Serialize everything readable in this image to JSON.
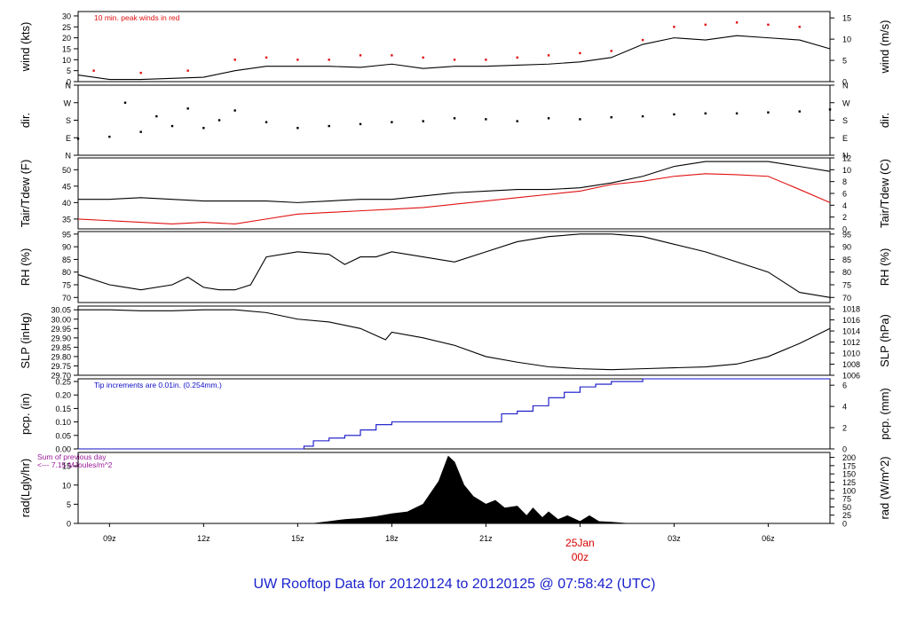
{
  "footer": {
    "title": "UW Rooftop Data for 20120124  to  20120125 @ 07:58:42  (UTC)"
  },
  "x_axis": {
    "start_hour": 8.0,
    "end_hour": 31.97,
    "ticks": [
      {
        "hour": 9,
        "label": "09z"
      },
      {
        "hour": 12,
        "label": "12z"
      },
      {
        "hour": 15,
        "label": "15z"
      },
      {
        "hour": 18,
        "label": "18z"
      },
      {
        "hour": 21,
        "label": "21z"
      },
      {
        "hour": 24,
        "label": "00z"
      },
      {
        "hour": 27,
        "label": "03z"
      },
      {
        "hour": 30,
        "label": "06z"
      }
    ],
    "date_marker": {
      "hour": 24,
      "label": "25Jan",
      "color": "#d40000"
    }
  },
  "colors": {
    "black": "#000000",
    "red": "#e01010",
    "blue": "#1010c8",
    "purple": "#9a1a9a"
  },
  "chart_data": [
    {
      "id": "wind",
      "type": "line",
      "ylabel_left": "wind (kts)",
      "ylabel_right": "wind (m/s)",
      "ylim": [
        0,
        32
      ],
      "ylim_right": [
        0,
        16.5
      ],
      "yticks_left": [
        0,
        5,
        10,
        15,
        20,
        25,
        30
      ],
      "yticks_right": [
        0,
        5,
        10,
        15
      ],
      "annotation": "10 min. peak winds in red",
      "series": [
        {
          "color": "black",
          "x": [
            8,
            9,
            10,
            11,
            12,
            13,
            14,
            15,
            16,
            17,
            18,
            19,
            20,
            21,
            22,
            23,
            24,
            25,
            26,
            27,
            28,
            29,
            30,
            31,
            31.97
          ],
          "y": [
            3,
            1,
            1,
            1.5,
            2,
            5,
            7,
            7,
            7,
            6.5,
            8,
            6,
            7,
            7,
            7.5,
            8,
            9,
            11,
            17,
            20,
            19,
            21,
            20,
            19,
            15
          ]
        },
        {
          "color": "red",
          "style": "points",
          "x": [
            8.5,
            10,
            11.5,
            13,
            14,
            15,
            16,
            17,
            18,
            19,
            20,
            21,
            22,
            23,
            24,
            25,
            26,
            27,
            28,
            29,
            30,
            31
          ],
          "y": [
            5,
            4,
            5,
            10,
            11,
            10,
            10,
            12,
            12,
            11,
            10,
            10,
            11,
            12,
            13,
            14,
            19,
            25,
            26,
            27,
            26,
            25
          ]
        }
      ]
    },
    {
      "id": "dir",
      "type": "scatter",
      "ylabel_left": "dir.",
      "ylabel_right": "dir.",
      "ylim": [
        0,
        360
      ],
      "yticks_left": [
        {
          "v": 0,
          "label": "N"
        },
        {
          "v": 90,
          "label": "E"
        },
        {
          "v": 180,
          "label": "S"
        },
        {
          "v": 270,
          "label": "W"
        },
        {
          "v": 360,
          "label": "N"
        }
      ],
      "series": [
        {
          "color": "black",
          "x": [
            8,
            9,
            9.5,
            10,
            10.5,
            11,
            11.5,
            12,
            12.5,
            13,
            14,
            15,
            16,
            17,
            18,
            19,
            20,
            21,
            22,
            23,
            24,
            25,
            26,
            27,
            28,
            29,
            30,
            31,
            31.97
          ],
          "y": [
            85,
            95,
            270,
            120,
            200,
            150,
            240,
            140,
            180,
            230,
            170,
            140,
            150,
            160,
            170,
            175,
            190,
            185,
            175,
            190,
            185,
            195,
            200,
            210,
            215,
            215,
            220,
            225,
            235
          ]
        }
      ]
    },
    {
      "id": "temp",
      "type": "line",
      "ylabel_left": "Tair/Tdew (F)",
      "ylabel_right": "Tair/Tdew (C)",
      "ylim": [
        32,
        53.6
      ],
      "ylim_right": [
        0,
        12
      ],
      "yticks_left": [
        35,
        40,
        45,
        50
      ],
      "yticks_right": [
        0,
        2,
        4,
        6,
        8,
        10,
        12
      ],
      "series": [
        {
          "name": "Tair",
          "color": "black",
          "x": [
            8,
            9,
            10,
            11,
            12,
            13,
            14,
            15,
            16,
            17,
            18,
            19,
            20,
            21,
            22,
            23,
            24,
            25,
            26,
            27,
            28,
            29,
            30,
            31,
            31.97
          ],
          "y": [
            41,
            41,
            41.5,
            41,
            40.5,
            40.5,
            40.5,
            40,
            40.5,
            41,
            41,
            42,
            43,
            43.5,
            44,
            44,
            44.5,
            46,
            48,
            51,
            52.5,
            52.5,
            52.5,
            51,
            49.5
          ]
        },
        {
          "name": "Tdew",
          "color": "red",
          "x": [
            8,
            9,
            10,
            11,
            12,
            13,
            14,
            15,
            16,
            17,
            18,
            19,
            20,
            21,
            22,
            23,
            24,
            25,
            26,
            27,
            28,
            29,
            30,
            31,
            31.97
          ],
          "y": [
            35,
            34.5,
            34,
            33.5,
            34,
            33.5,
            35,
            36.5,
            37,
            37.5,
            38,
            38.5,
            39.5,
            40.5,
            41.5,
            42.5,
            43.5,
            45.5,
            46.5,
            48,
            48.8,
            48.5,
            48,
            44,
            40
          ]
        }
      ]
    },
    {
      "id": "rh",
      "type": "line",
      "ylabel_left": "RH (%)",
      "ylabel_right": "RH (%)",
      "ylim": [
        68,
        96
      ],
      "yticks_left": [
        70,
        75,
        80,
        85,
        90,
        95
      ],
      "yticks_right": [
        70,
        75,
        80,
        85,
        90,
        95
      ],
      "series": [
        {
          "color": "black",
          "x": [
            8,
            9,
            10,
            11,
            11.5,
            12,
            12.5,
            13,
            13.5,
            14,
            15,
            16,
            16.5,
            17,
            17.5,
            18,
            19,
            20,
            21,
            22,
            23,
            24,
            25,
            26,
            27,
            28,
            29,
            30,
            31,
            31.97
          ],
          "y": [
            79,
            75,
            73,
            75,
            78,
            74,
            73,
            73,
            75,
            86,
            88,
            87,
            83,
            86,
            86,
            88,
            86,
            84,
            88,
            92,
            94,
            95,
            95,
            94,
            91,
            88,
            84,
            80,
            72,
            70
          ]
        }
      ]
    },
    {
      "id": "slp",
      "type": "line",
      "ylabel_left": "SLP (inHg)",
      "ylabel_right": "SLP (hPa)",
      "ylim": [
        29.7,
        30.07
      ],
      "ylim_right": [
        1006,
        1018.5
      ],
      "yticks_left": [
        "29.70",
        "29.75",
        "29.80",
        "29.85",
        "29.90",
        "29.95",
        "30.00",
        "30.05"
      ],
      "yticks_right": [
        1006,
        1008,
        1010,
        1012,
        1014,
        1016,
        1018
      ],
      "series": [
        {
          "color": "black",
          "x": [
            8,
            9,
            10,
            11,
            12,
            13,
            14,
            15,
            16,
            17,
            17.8,
            18,
            19,
            20,
            21,
            22,
            23,
            24,
            25,
            26,
            27,
            28,
            29,
            30,
            31,
            31.97
          ],
          "y": [
            30.05,
            30.05,
            30.045,
            30.045,
            30.05,
            30.05,
            30.035,
            30.0,
            29.985,
            29.95,
            29.89,
            29.93,
            29.9,
            29.86,
            29.8,
            29.77,
            29.745,
            29.735,
            29.73,
            29.735,
            29.74,
            29.745,
            29.76,
            29.8,
            29.87,
            29.95
          ]
        }
      ]
    },
    {
      "id": "pcp",
      "type": "line",
      "ylabel_left": "pcp. (in)",
      "ylabel_right": "pcp. (mm)",
      "ylim": [
        0,
        0.26
      ],
      "ylim_right": [
        0,
        6.6
      ],
      "yticks_left": [
        "0.00",
        "0.05",
        "0.10",
        "0.15",
        "0.20",
        "0.25"
      ],
      "yticks_right": [
        0,
        2,
        4,
        6
      ],
      "annotation": "Tip increments are 0.01in. (0.254mm.)",
      "series": [
        {
          "color": "blue",
          "style": "step",
          "x": [
            8,
            14.4,
            15.2,
            15.5,
            16,
            16.5,
            17,
            17.5,
            18,
            19,
            20,
            21,
            21.5,
            22,
            22.5,
            23,
            23.5,
            24,
            24.5,
            25,
            26,
            27,
            28,
            29,
            30,
            31,
            31.97
          ],
          "y": [
            0,
            0,
            0.01,
            0.03,
            0.04,
            0.05,
            0.07,
            0.09,
            0.1,
            0.1,
            0.1,
            0.1,
            0.13,
            0.14,
            0.16,
            0.19,
            0.21,
            0.23,
            0.24,
            0.25,
            0.26,
            0.26,
            0.26,
            0.26,
            0.26,
            0.26,
            0.26
          ]
        }
      ]
    },
    {
      "id": "rad",
      "type": "area",
      "ylabel_left": "rad(Lgly/hr)",
      "ylabel_right": "rad (W/m^2)",
      "ylim": [
        0,
        18.5
      ],
      "ylim_right": [
        0,
        215
      ],
      "yticks_left": [
        0,
        5,
        10,
        15
      ],
      "yticks_right": [
        0,
        25,
        50,
        75,
        100,
        125,
        150,
        175,
        200
      ],
      "annotation_lines": [
        "Sum of previous day",
        "<--- 7.15 MJoules/m^2"
      ],
      "series": [
        {
          "color": "black",
          "x": [
            8,
            15.5,
            16,
            16.5,
            17,
            17.5,
            18,
            18.5,
            19,
            19.5,
            19.8,
            20,
            20.3,
            20.6,
            21,
            21.3,
            21.6,
            22,
            22.3,
            22.5,
            22.8,
            23,
            23.3,
            23.6,
            24,
            24.3,
            24.6,
            25,
            25.5,
            31.97
          ],
          "y": [
            0,
            0,
            0.5,
            1,
            1.3,
            1.8,
            2.5,
            3,
            5,
            11,
            17.5,
            16,
            10,
            7,
            5,
            6,
            4,
            4.5,
            2,
            4,
            1.5,
            3,
            1,
            2,
            0.5,
            2,
            0.5,
            0.3,
            0,
            0
          ]
        }
      ]
    }
  ]
}
